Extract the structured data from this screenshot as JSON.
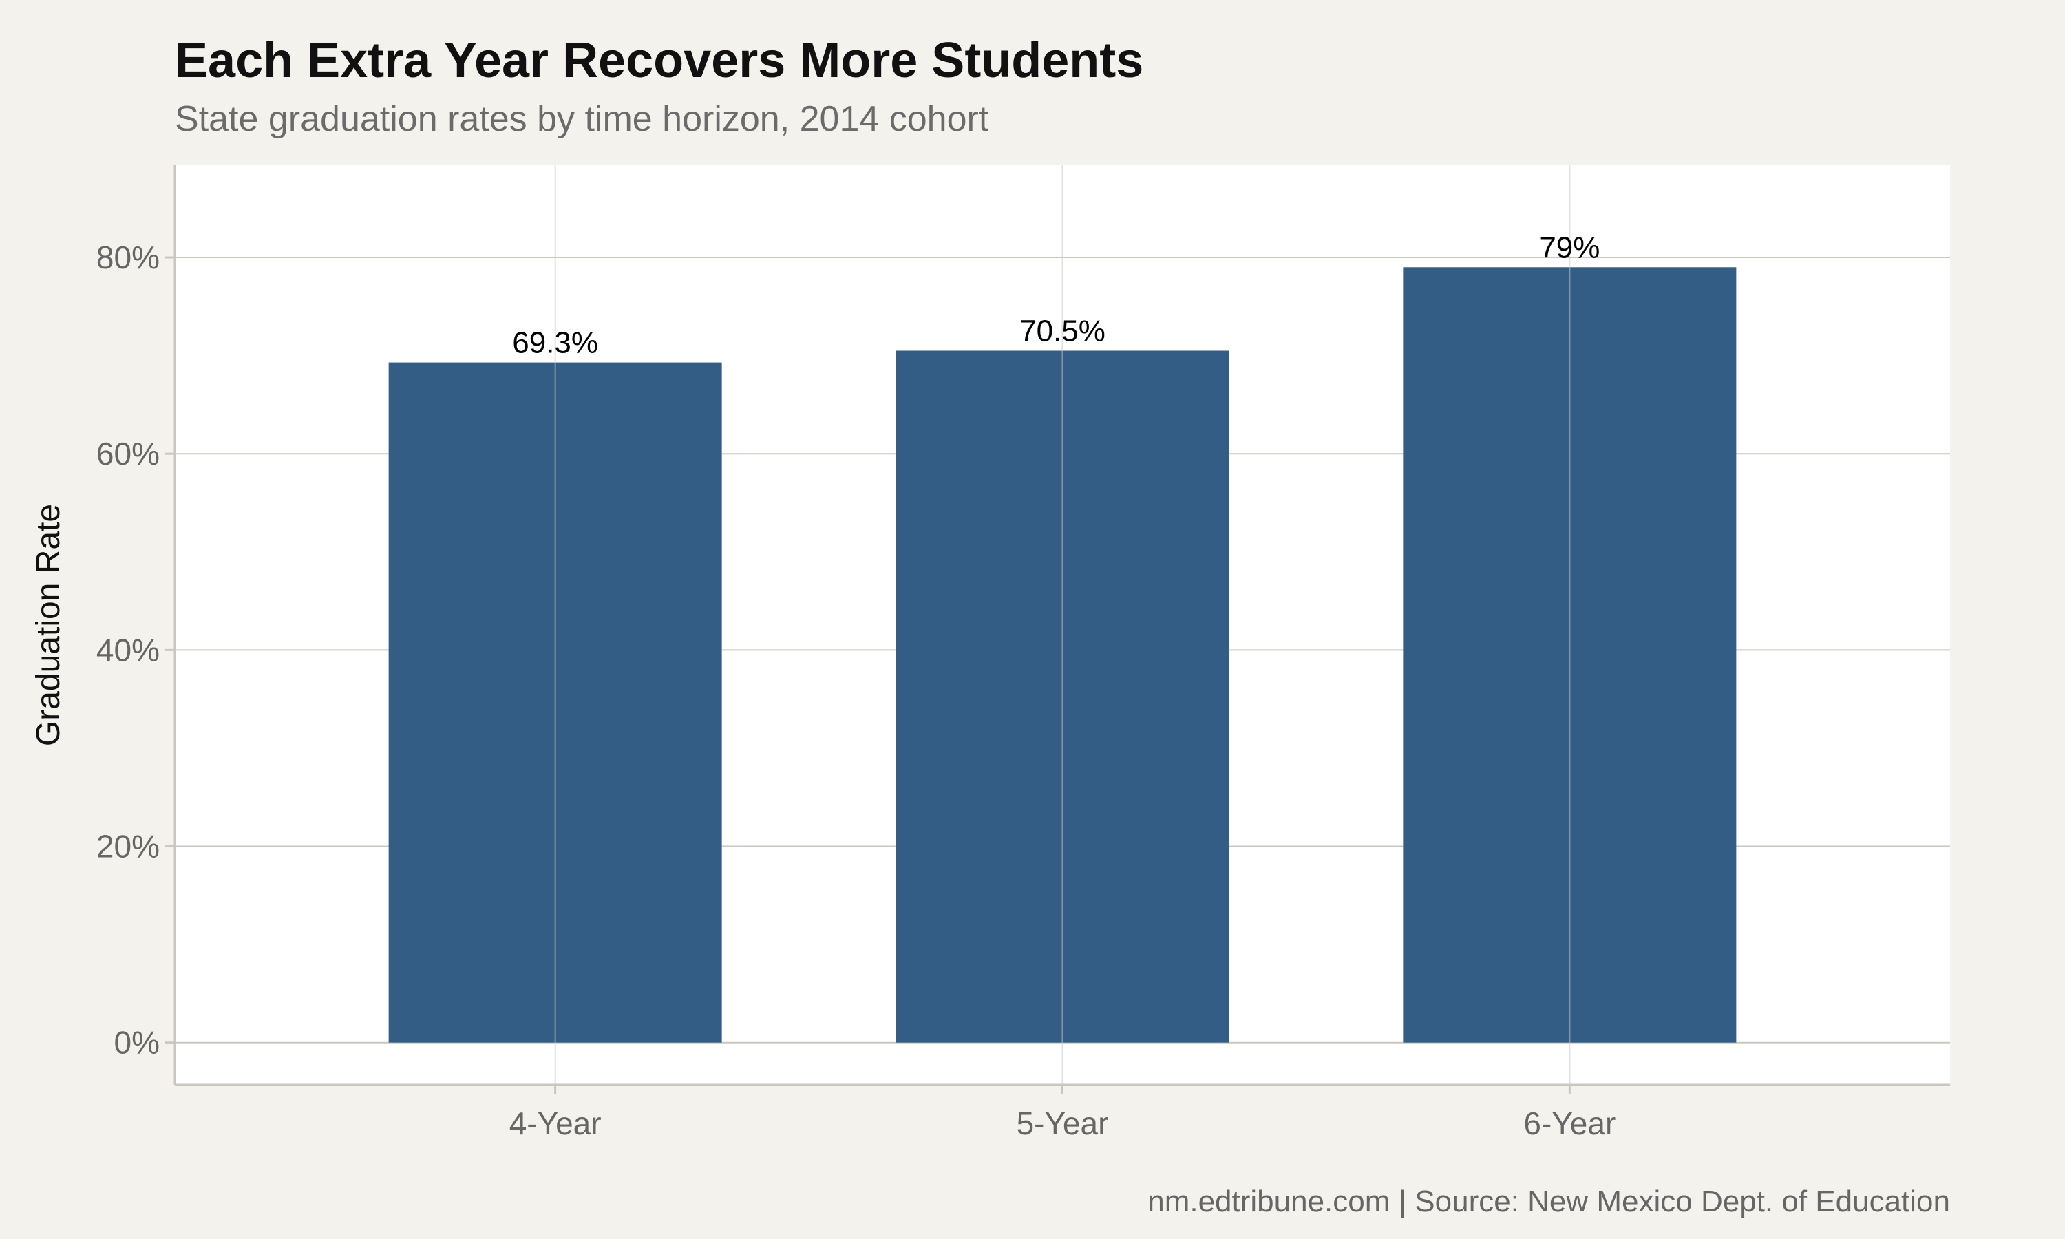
{
  "chart_data": {
    "type": "bar",
    "title": "Each Extra Year Recovers More Students",
    "subtitle": "State graduation rates by time horizon, 2014 cohort",
    "xlabel": "",
    "ylabel": "Graduation Rate",
    "categories": [
      "4-Year",
      "5-Year",
      "6-Year"
    ],
    "values": [
      69.3,
      70.5,
      79.0
    ],
    "data_labels": [
      "69.3%",
      "70.5%",
      "79%"
    ],
    "y_ticks": [
      0,
      20,
      40,
      60,
      80
    ],
    "y_tick_labels": [
      "0%",
      "20%",
      "40%",
      "60%",
      "80%"
    ],
    "ylim": [
      -4.3,
      89.4
    ],
    "grid": true,
    "legend": "none",
    "caption": "nm.edtribune.com | Source: New Mexico Dept. of Education",
    "colors": {
      "bar": "#335d84",
      "background": "#f4f2ed",
      "panel": "#ffffff",
      "grid": "#c9c7bf"
    }
  }
}
